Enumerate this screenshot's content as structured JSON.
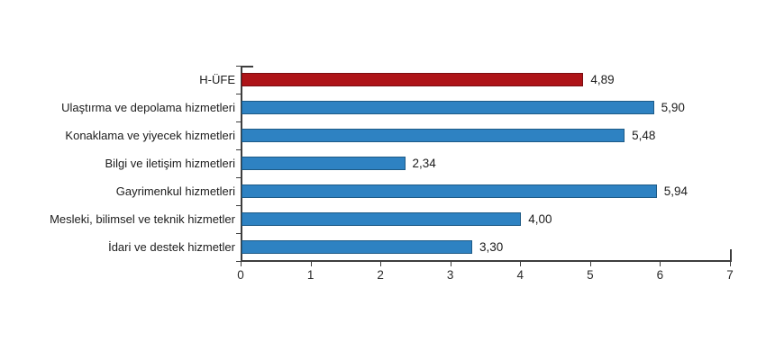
{
  "chart_data": {
    "type": "bar",
    "orientation": "horizontal",
    "title": "",
    "xlabel": "",
    "ylabel": "",
    "categories": [
      "H-ÜFE",
      "Ulaştırma ve depolama hizmetleri",
      "Konaklama ve yiyecek hizmetleri",
      "Bilgi ve iletişim hizmetleri",
      "Gayrimenkul hizmetleri",
      "Mesleki, bilimsel ve teknik hizmetler",
      "İdari ve destek hizmetler"
    ],
    "values": [
      4.89,
      5.9,
      5.48,
      2.34,
      5.94,
      4.0,
      3.3
    ],
    "value_labels": [
      "4,89",
      "5,90",
      "5,48",
      "2,34",
      "5,94",
      "4,00",
      "3,30"
    ],
    "xlim": [
      0,
      7
    ],
    "x_ticks": [
      "0",
      "1",
      "2",
      "3",
      "4",
      "5",
      "6",
      "7"
    ],
    "grid": false,
    "legend": null,
    "highlight": {
      "index": 0,
      "label": "H-ÜFE"
    },
    "colors": {
      "default_fill": "#2e82c2",
      "default_border": "#1d5a86",
      "highlight_fill": "#ae1418",
      "highlight_border": "#7a0e12",
      "axis": "#3d3d3d",
      "text": "#1c1c1c"
    }
  }
}
